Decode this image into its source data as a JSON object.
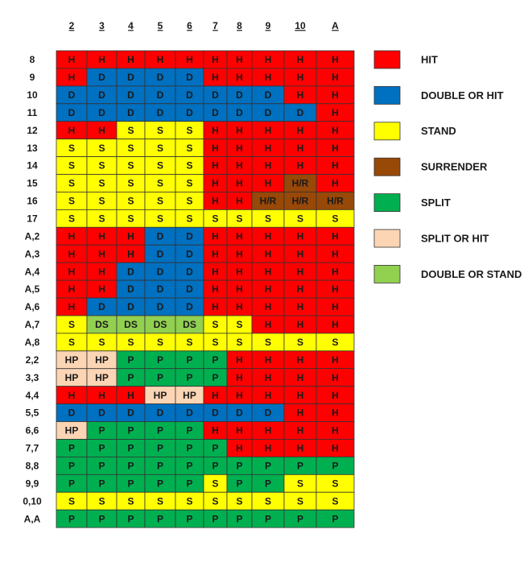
{
  "columns": [
    "2",
    "3",
    "4",
    "5",
    "6",
    "7",
    "8",
    "9",
    "10",
    "A"
  ],
  "cell_colors": {
    "H": "#ff0000",
    "D": "#0070c0",
    "S": "#ffff00",
    "H/R": "#984807",
    "P": "#00b050",
    "HP": "#fcd5b4",
    "DS": "#92d050"
  },
  "rows": [
    {
      "label": "8",
      "cells": [
        "H",
        "H",
        "H",
        "H",
        "H",
        "H",
        "H",
        "H",
        "H",
        "H"
      ]
    },
    {
      "label": "9",
      "cells": [
        "H",
        "D",
        "D",
        "D",
        "D",
        "H",
        "H",
        "H",
        "H",
        "H"
      ]
    },
    {
      "label": "10",
      "cells": [
        "D",
        "D",
        "D",
        "D",
        "D",
        "D",
        "D",
        "D",
        "H",
        "H"
      ]
    },
    {
      "label": "11",
      "cells": [
        "D",
        "D",
        "D",
        "D",
        "D",
        "D",
        "D",
        "D",
        "D",
        "H"
      ]
    },
    {
      "label": "12",
      "cells": [
        "H",
        "H",
        "S",
        "S",
        "S",
        "H",
        "H",
        "H",
        "H",
        "H"
      ]
    },
    {
      "label": "13",
      "cells": [
        "S",
        "S",
        "S",
        "S",
        "S",
        "H",
        "H",
        "H",
        "H",
        "H"
      ]
    },
    {
      "label": "14",
      "cells": [
        "S",
        "S",
        "S",
        "S",
        "S",
        "H",
        "H",
        "H",
        "H",
        "H"
      ]
    },
    {
      "label": "15",
      "cells": [
        "S",
        "S",
        "S",
        "S",
        "S",
        "H",
        "H",
        "H",
        "H/R",
        "H"
      ]
    },
    {
      "label": "16",
      "cells": [
        "S",
        "S",
        "S",
        "S",
        "S",
        "H",
        "H",
        "H/R",
        "H/R",
        "H/R"
      ]
    },
    {
      "label": "17",
      "cells": [
        "S",
        "S",
        "S",
        "S",
        "S",
        "S",
        "S",
        "S",
        "S",
        "S"
      ]
    },
    {
      "label": "A,2",
      "cells": [
        "H",
        "H",
        "H",
        "D",
        "D",
        "H",
        "H",
        "H",
        "H",
        "H"
      ]
    },
    {
      "label": "A,3",
      "cells": [
        "H",
        "H",
        "H",
        "D",
        "D",
        "H",
        "H",
        "H",
        "H",
        "H"
      ]
    },
    {
      "label": "A,4",
      "cells": [
        "H",
        "H",
        "D",
        "D",
        "D",
        "H",
        "H",
        "H",
        "H",
        "H"
      ]
    },
    {
      "label": "A,5",
      "cells": [
        "H",
        "H",
        "D",
        "D",
        "D",
        "H",
        "H",
        "H",
        "H",
        "H"
      ]
    },
    {
      "label": "A,6",
      "cells": [
        "H",
        "D",
        "D",
        "D",
        "D",
        "H",
        "H",
        "H",
        "H",
        "H"
      ]
    },
    {
      "label": "A,7",
      "cells": [
        "S",
        "DS",
        "DS",
        "DS",
        "DS",
        "S",
        "S",
        "H",
        "H",
        "H"
      ]
    },
    {
      "label": "A,8",
      "cells": [
        "S",
        "S",
        "S",
        "S",
        "S",
        "S",
        "S",
        "S",
        "S",
        "S"
      ]
    },
    {
      "label": "2,2",
      "cells": [
        "HP",
        "HP",
        "P",
        "P",
        "P",
        "P",
        "H",
        "H",
        "H",
        "H"
      ]
    },
    {
      "label": "3,3",
      "cells": [
        "HP",
        "HP",
        "P",
        "P",
        "P",
        "P",
        "H",
        "H",
        "H",
        "H"
      ]
    },
    {
      "label": "4,4",
      "cells": [
        "H",
        "H",
        "H",
        "HP",
        "HP",
        "H",
        "H",
        "H",
        "H",
        "H"
      ]
    },
    {
      "label": "5,5",
      "cells": [
        "D",
        "D",
        "D",
        "D",
        "D",
        "D",
        "D",
        "D",
        "H",
        "H"
      ]
    },
    {
      "label": "6,6",
      "cells": [
        "HP",
        "P",
        "P",
        "P",
        "P",
        "H",
        "H",
        "H",
        "H",
        "H"
      ]
    },
    {
      "label": "7,7",
      "cells": [
        "P",
        "P",
        "P",
        "P",
        "P",
        "P",
        "H",
        "H",
        "H",
        "H"
      ]
    },
    {
      "label": "8,8",
      "cells": [
        "P",
        "P",
        "P",
        "P",
        "P",
        "P",
        "P",
        "P",
        "P",
        "P"
      ]
    },
    {
      "label": "9,9",
      "cells": [
        "P",
        "P",
        "P",
        "P",
        "P",
        "S",
        "P",
        "P",
        "S",
        "S"
      ]
    },
    {
      "label": "0,10",
      "cells": [
        "S",
        "S",
        "S",
        "S",
        "S",
        "S",
        "S",
        "S",
        "S",
        "S"
      ]
    },
    {
      "label": "A,A",
      "cells": [
        "P",
        "P",
        "P",
        "P",
        "P",
        "P",
        "P",
        "P",
        "P",
        "P"
      ]
    }
  ],
  "legend": [
    {
      "label": "HIT",
      "color": "#ff0000"
    },
    {
      "label": "DOUBLE OR HIT",
      "color": "#0070c0"
    },
    {
      "label": "STAND",
      "color": "#ffff00"
    },
    {
      "label": "SURRENDER",
      "color": "#984807"
    },
    {
      "label": "SPLIT",
      "color": "#00b050"
    },
    {
      "label": "SPLIT OR HIT",
      "color": "#fcd5b4"
    },
    {
      "label": "DOUBLE OR STAND",
      "color": "#92d050"
    }
  ]
}
